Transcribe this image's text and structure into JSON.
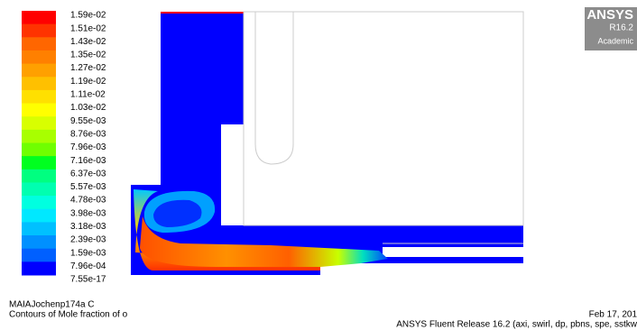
{
  "legend": {
    "labels": [
      "1.59e-02",
      "1.51e-02",
      "1.43e-02",
      "1.35e-02",
      "1.27e-02",
      "1.19e-02",
      "1.11e-02",
      "1.03e-02",
      "9.55e-03",
      "8.76e-03",
      "7.96e-03",
      "7.16e-03",
      "6.37e-03",
      "5.57e-03",
      "4.78e-03",
      "3.98e-03",
      "3.18e-03",
      "2.39e-03",
      "1.59e-03",
      "7.96e-04",
      "7.55e-17"
    ]
  },
  "logo": {
    "name": "ANSYS",
    "version": "R16.2",
    "edition": "Academic"
  },
  "footer": {
    "case": "MAIAJochenp174a C",
    "description": "Contours of Mole fraction of o",
    "date": "Feb 17, 201",
    "release": "ANSYS Fluent Release 16.2 (axi, swirl, dp, pbns, spe, sstkw"
  }
}
